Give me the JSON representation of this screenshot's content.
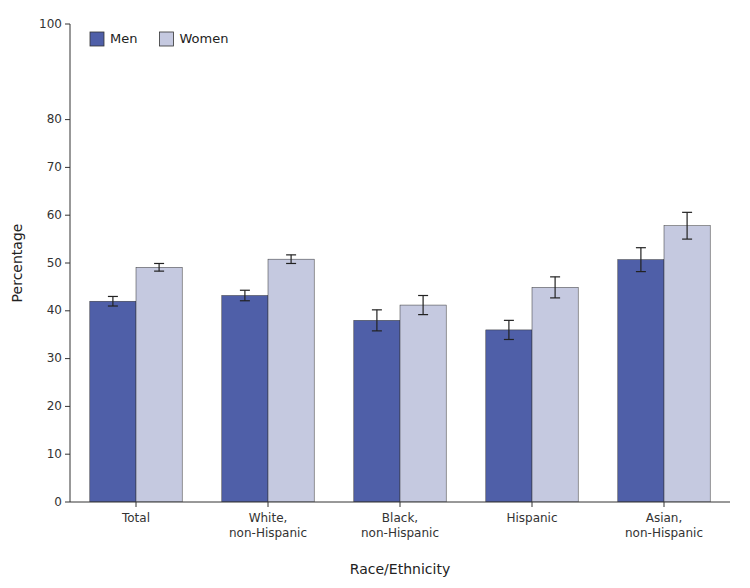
{
  "chart_data": {
    "type": "bar",
    "categories": [
      "Total",
      "White,\nnon-Hispanic",
      "Black,\nnon-Hispanic",
      "Hispanic",
      "Asian,\nnon-Hispanic"
    ],
    "series": [
      {
        "name": "Men",
        "color": "#4f5fa8",
        "values": [
          42.0,
          43.2,
          38.0,
          36.0,
          50.7
        ],
        "errors": [
          1.0,
          1.1,
          2.2,
          2.0,
          2.5
        ]
      },
      {
        "name": "Women",
        "color": "#c5c9e0",
        "values": [
          49.1,
          50.8,
          41.2,
          44.9,
          57.8
        ],
        "errors": [
          0.8,
          0.9,
          2.0,
          2.2,
          2.8
        ]
      }
    ],
    "xlabel": "Race/Ethnicity",
    "ylabel": "Percentage",
    "ylim": [
      0,
      100
    ],
    "yticks": [
      0,
      10,
      20,
      30,
      40,
      50,
      60,
      70,
      80,
      100
    ],
    "grid": false,
    "legend": "upper left"
  }
}
